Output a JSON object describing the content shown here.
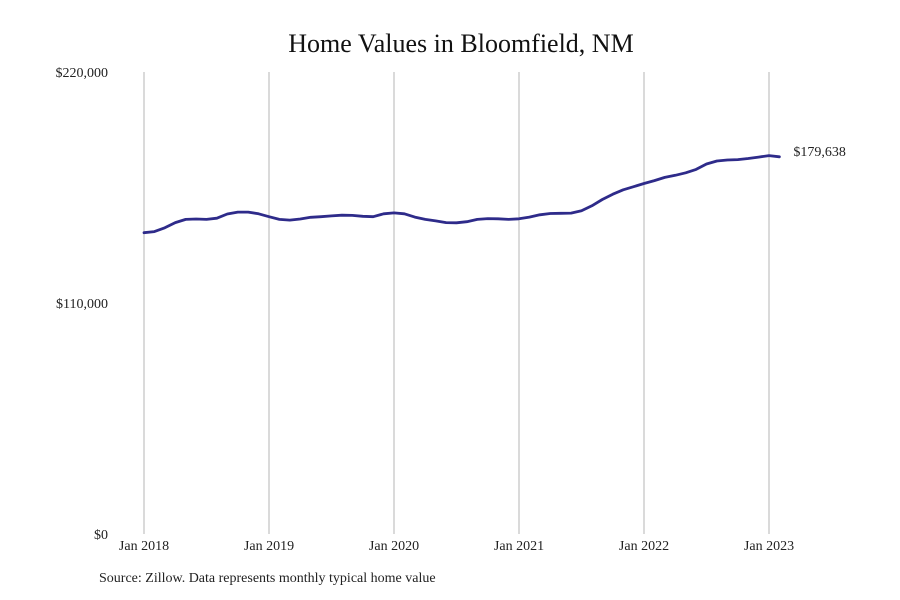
{
  "chart_data": {
    "type": "line",
    "title": "Home Values in Bloomfield, NM",
    "xlabel": "",
    "ylabel": "",
    "grid": "vertical",
    "ylim": [
      0,
      220000
    ],
    "yticks": [
      {
        "value": 0,
        "label": "$0"
      },
      {
        "value": 110000,
        "label": "$110,000"
      },
      {
        "value": 220000,
        "label": "$220,000"
      }
    ],
    "xlim": [
      "2018-01",
      "2023-03"
    ],
    "xticks": [
      {
        "value": "2018-01",
        "label": "Jan 2018"
      },
      {
        "value": "2019-01",
        "label": "Jan 2019"
      },
      {
        "value": "2020-01",
        "label": "Jan 2020"
      },
      {
        "value": "2021-01",
        "label": "Jan 2021"
      },
      {
        "value": "2022-01",
        "label": "Jan 2022"
      },
      {
        "value": "2023-01",
        "label": "Jan 2023"
      }
    ],
    "series": [
      {
        "color": "#2e2b8a",
        "end_label": "$179,638",
        "points": [
          [
            "2018-01",
            143500
          ],
          [
            "2018-02",
            144000
          ],
          [
            "2018-03",
            145800
          ],
          [
            "2018-04",
            148300
          ],
          [
            "2018-05",
            149800
          ],
          [
            "2018-06",
            150000
          ],
          [
            "2018-07",
            149800
          ],
          [
            "2018-08",
            150400
          ],
          [
            "2018-09",
            152400
          ],
          [
            "2018-10",
            153300
          ],
          [
            "2018-11",
            153300
          ],
          [
            "2018-12",
            152500
          ],
          [
            "2019-01",
            151100
          ],
          [
            "2019-02",
            149800
          ],
          [
            "2019-03",
            149500
          ],
          [
            "2019-04",
            150000
          ],
          [
            "2019-05",
            150800
          ],
          [
            "2019-06",
            151100
          ],
          [
            "2019-07",
            151500
          ],
          [
            "2019-08",
            151800
          ],
          [
            "2019-09",
            151700
          ],
          [
            "2019-10",
            151300
          ],
          [
            "2019-11",
            151100
          ],
          [
            "2019-12",
            152500
          ],
          [
            "2020-01",
            152900
          ],
          [
            "2020-02",
            152500
          ],
          [
            "2020-03",
            150900
          ],
          [
            "2020-04",
            149800
          ],
          [
            "2020-05",
            149100
          ],
          [
            "2020-06",
            148300
          ],
          [
            "2020-07",
            148200
          ],
          [
            "2020-08",
            148700
          ],
          [
            "2020-09",
            149800
          ],
          [
            "2020-10",
            150200
          ],
          [
            "2020-11",
            150100
          ],
          [
            "2020-12",
            149800
          ],
          [
            "2021-01",
            150100
          ],
          [
            "2021-02",
            150900
          ],
          [
            "2021-03",
            152000
          ],
          [
            "2021-04",
            152600
          ],
          [
            "2021-05",
            152700
          ],
          [
            "2021-06",
            152800
          ],
          [
            "2021-07",
            153900
          ],
          [
            "2021-08",
            156300
          ],
          [
            "2021-09",
            159300
          ],
          [
            "2021-10",
            161800
          ],
          [
            "2021-11",
            163900
          ],
          [
            "2021-12",
            165400
          ],
          [
            "2022-01",
            166900
          ],
          [
            "2022-02",
            168300
          ],
          [
            "2022-03",
            169800
          ],
          [
            "2022-04",
            170800
          ],
          [
            "2022-05",
            172000
          ],
          [
            "2022-06",
            173600
          ],
          [
            "2022-07",
            176200
          ],
          [
            "2022-08",
            177600
          ],
          [
            "2022-09",
            178100
          ],
          [
            "2022-10",
            178300
          ],
          [
            "2022-11",
            178800
          ],
          [
            "2022-12",
            179500
          ],
          [
            "2023-01",
            180200
          ],
          [
            "2023-02",
            179638
          ]
        ]
      }
    ]
  },
  "footer": {
    "source": "Source: Zillow. Data represents monthly typical home value"
  }
}
